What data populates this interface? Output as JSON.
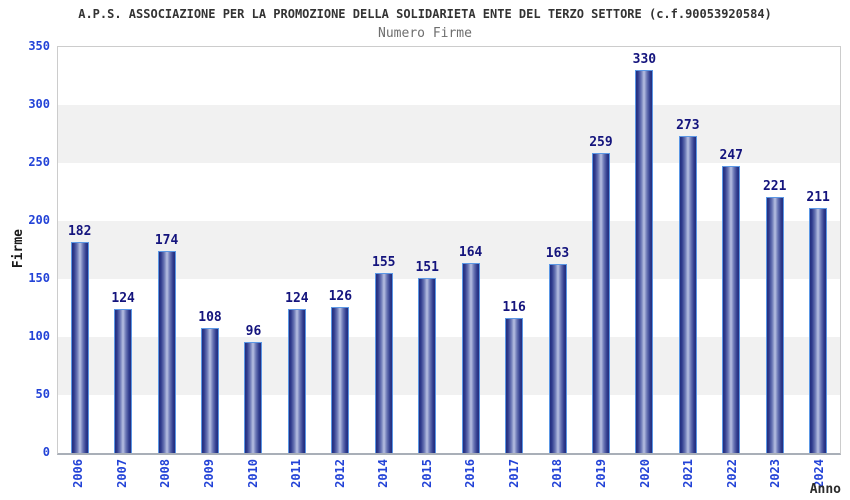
{
  "header": {
    "title": "A.P.S. ASSOCIAZIONE PER LA PROMOZIONE DELLA SOLIDARIETA ENTE DEL TERZO SETTORE (c.f.90053920584)",
    "subtitle": "Numero Firme"
  },
  "axes": {
    "y_label": "Firme",
    "x_label": "Anno",
    "y_ticks": [
      350,
      300,
      250,
      200,
      150,
      100,
      50,
      0
    ]
  },
  "chart_data": {
    "type": "bar",
    "title": "A.P.S. ASSOCIAZIONE PER LA PROMOZIONE DELLA SOLIDARIETA ENTE DEL TERZO SETTORE (c.f.90053920584)",
    "subtitle": "Numero Firme",
    "categories": [
      "2006",
      "2007",
      "2008",
      "2009",
      "2010",
      "2011",
      "2012",
      "2014",
      "2015",
      "2016",
      "2017",
      "2018",
      "2019",
      "2020",
      "2021",
      "2022",
      "2023",
      "2024"
    ],
    "values": [
      182,
      124,
      174,
      108,
      96,
      124,
      126,
      155,
      151,
      164,
      116,
      163,
      259,
      330,
      273,
      247,
      221,
      211
    ],
    "xlabel": "Anno",
    "ylabel": "Firme",
    "ylim": [
      0,
      350
    ],
    "y_tick_step": 50,
    "grid": "alternating horizontal bands, 50-unit steps",
    "legend": "none",
    "bar_color_dark": "#2e3a8c",
    "bar_color_light": "#b7c0e2",
    "bar_border_color": "#5b97e5",
    "value_label_color": "#14147d",
    "tick_label_color": "#2343d7",
    "title_color": "#333333",
    "subtitle_color": "#6e6e6e",
    "band_color": "#f1f1f1"
  }
}
